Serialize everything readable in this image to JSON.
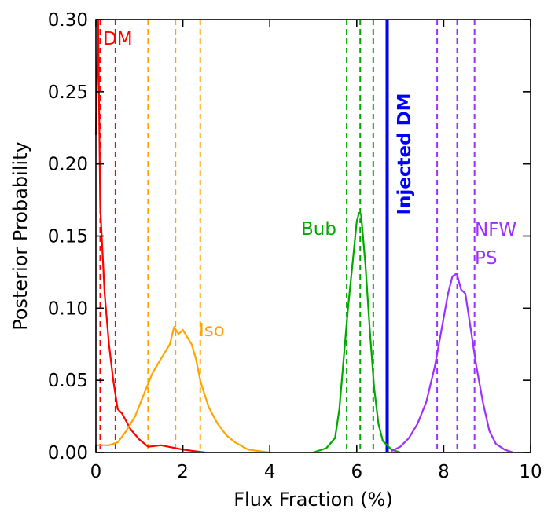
{
  "chart_data": {
    "type": "line",
    "title": "",
    "xlabel": "Flux Fraction (%)",
    "ylabel": "Posterior Probability",
    "xlim": [
      0,
      10
    ],
    "ylim": [
      0,
      0.3
    ],
    "xticks": [
      0,
      2,
      4,
      6,
      8,
      10
    ],
    "xtick_labels": [
      "0",
      "2",
      "4",
      "6",
      "8",
      "10"
    ],
    "yticks": [
      0.0,
      0.05,
      0.1,
      0.15,
      0.2,
      0.25,
      0.3
    ],
    "ytick_labels": [
      "0.00",
      "0.05",
      "0.10",
      "0.15",
      "0.20",
      "0.25",
      "0.30"
    ],
    "grid": false,
    "series": [
      {
        "name": "DM",
        "color": "#ff0000",
        "x": [
          0.0,
          0.05,
          0.1,
          0.15,
          0.2,
          0.3,
          0.4,
          0.5,
          0.6,
          0.8,
          1.0,
          1.2,
          1.5,
          2.0,
          2.5
        ],
        "y": [
          0.22,
          0.3,
          0.17,
          0.14,
          0.11,
          0.075,
          0.05,
          0.03,
          0.027,
          0.016,
          0.009,
          0.004,
          0.005,
          0.002,
          0.0
        ],
        "quantiles": [
          0.1,
          0.45
        ]
      },
      {
        "name": "Iso",
        "color": "#ffa500",
        "x": [
          0.0,
          0.1,
          0.3,
          0.5,
          0.7,
          0.9,
          1.1,
          1.3,
          1.5,
          1.7,
          1.8,
          1.9,
          2.0,
          2.1,
          2.2,
          2.3,
          2.4,
          2.5,
          2.6,
          2.8,
          3.0,
          3.2,
          3.5,
          4.0
        ],
        "y": [
          0.005,
          0.005,
          0.005,
          0.007,
          0.015,
          0.025,
          0.04,
          0.055,
          0.065,
          0.075,
          0.087,
          0.082,
          0.085,
          0.08,
          0.075,
          0.065,
          0.05,
          0.04,
          0.031,
          0.02,
          0.012,
          0.007,
          0.002,
          0.0
        ],
        "quantiles": [
          1.2,
          1.83,
          2.4
        ]
      },
      {
        "name": "Bub",
        "color": "#00a800",
        "x": [
          5.0,
          5.3,
          5.5,
          5.6,
          5.7,
          5.8,
          5.9,
          6.0,
          6.05,
          6.1,
          6.2,
          6.3,
          6.4,
          6.5,
          6.6,
          6.8,
          7.0
        ],
        "y": [
          0.0,
          0.003,
          0.01,
          0.03,
          0.065,
          0.1,
          0.13,
          0.16,
          0.166,
          0.165,
          0.13,
          0.085,
          0.045,
          0.02,
          0.008,
          0.002,
          0.0
        ],
        "quantiles": [
          5.77,
          6.08,
          6.38
        ]
      },
      {
        "name": "NFW PS",
        "color": "#9b30ff",
        "x": [
          6.8,
          7.0,
          7.2,
          7.4,
          7.6,
          7.8,
          7.95,
          8.1,
          8.2,
          8.3,
          8.4,
          8.5,
          8.6,
          8.75,
          8.9,
          9.05,
          9.2,
          9.4,
          9.6
        ],
        "y": [
          0.001,
          0.004,
          0.01,
          0.02,
          0.035,
          0.06,
          0.085,
          0.11,
          0.122,
          0.124,
          0.113,
          0.11,
          0.09,
          0.06,
          0.035,
          0.015,
          0.006,
          0.002,
          0.0
        ],
        "quantiles": [
          7.85,
          8.31,
          8.71
        ]
      }
    ],
    "reference_lines": [
      {
        "name": "Injected DM",
        "x": 6.7,
        "color": "#0000ff"
      }
    ],
    "annotations": [
      {
        "text": "DM",
        "color": "#ff0000"
      },
      {
        "text": "Iso",
        "color": "#ffa500"
      },
      {
        "text": "Bub",
        "color": "#00a800"
      },
      {
        "text": "NFW",
        "color": "#9b30ff"
      },
      {
        "text": "PS",
        "color": "#9b30ff"
      },
      {
        "text": "Injected DM",
        "color": "#0000ff"
      }
    ]
  }
}
